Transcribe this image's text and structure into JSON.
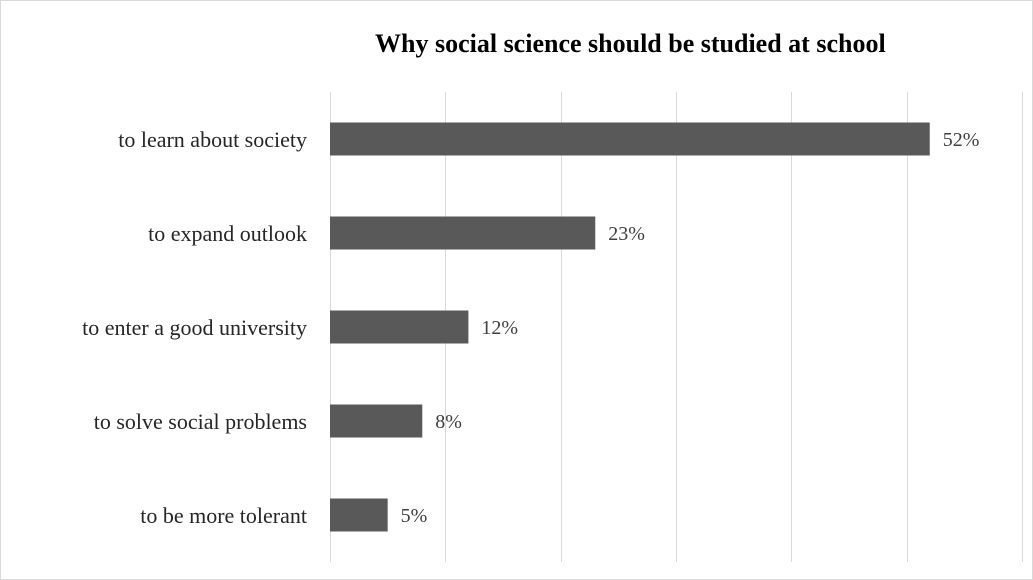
{
  "chart_data": {
    "type": "bar",
    "orientation": "horizontal",
    "title": "Why social science should be studied at school",
    "categories": [
      "to learn about society",
      "to expand outlook",
      "to enter a good university",
      "to solve social problems",
      "to be more tolerant"
    ],
    "values": [
      52,
      23,
      12,
      8,
      5
    ],
    "value_labels": [
      "52%",
      "23%",
      "12%",
      "8%",
      "5%"
    ],
    "xlim": [
      0,
      60
    ],
    "grid_step": 10,
    "grid": true,
    "legend": "none",
    "bar_color": "#595959",
    "grid_color": "#d9d9d9"
  }
}
